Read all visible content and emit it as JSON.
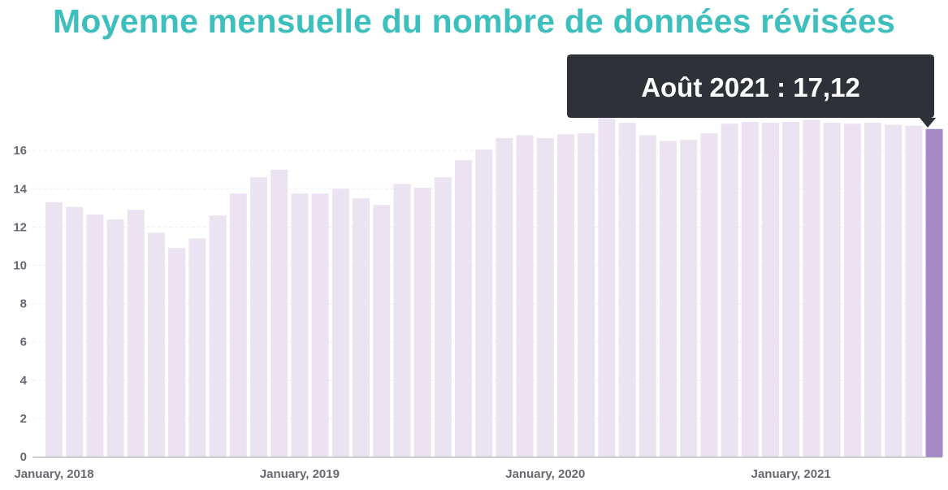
{
  "title": "Moyenne mensuelle du nombre de données révisées",
  "colors": {
    "title": "#3dbfbe",
    "bar": "#ebe2f2",
    "bar_highlight": "#a68ac8",
    "tooltip_bg": "#2e3238",
    "axis": "#9aa0a6",
    "grid": "#eeeeee"
  },
  "tooltip": {
    "label": "Août 2021 : 17,12",
    "bar_index": 43
  },
  "chart_data": {
    "type": "bar",
    "title": "Moyenne mensuelle du nombre de données révisées",
    "xlabel": "",
    "ylabel": "",
    "ylim": [
      0,
      17.8
    ],
    "yticks": [
      0,
      2,
      4,
      6,
      8,
      10,
      12,
      14,
      16
    ],
    "xtick_labels": [
      {
        "index": 0,
        "label": "January, 2018"
      },
      {
        "index": 12,
        "label": "January, 2019"
      },
      {
        "index": 24,
        "label": "January, 2020"
      },
      {
        "index": 36,
        "label": "January, 2021"
      }
    ],
    "categories": [
      "2018-01",
      "2018-02",
      "2018-03",
      "2018-04",
      "2018-05",
      "2018-06",
      "2018-07",
      "2018-08",
      "2018-09",
      "2018-10",
      "2018-11",
      "2018-12",
      "2019-01",
      "2019-02",
      "2019-03",
      "2019-04",
      "2019-05",
      "2019-06",
      "2019-07",
      "2019-08",
      "2019-09",
      "2019-10",
      "2019-11",
      "2019-12",
      "2020-01",
      "2020-02",
      "2020-03",
      "2020-04",
      "2020-05",
      "2020-06",
      "2020-07",
      "2020-08",
      "2020-09",
      "2020-10",
      "2020-11",
      "2020-12",
      "2021-01",
      "2021-02",
      "2021-03",
      "2021-04",
      "2021-05",
      "2021-06",
      "2021-07",
      "2021-08"
    ],
    "values": [
      13.3,
      13.05,
      12.65,
      12.4,
      12.9,
      11.7,
      10.9,
      11.4,
      12.6,
      13.75,
      14.6,
      15.0,
      13.75,
      13.75,
      14.0,
      13.5,
      13.15,
      14.25,
      14.05,
      14.6,
      15.5,
      16.05,
      16.65,
      16.8,
      16.65,
      16.85,
      16.9,
      17.7,
      17.45,
      16.8,
      16.5,
      16.55,
      16.9,
      17.4,
      17.5,
      17.45,
      17.5,
      17.6,
      17.45,
      17.4,
      17.45,
      17.35,
      17.3,
      17.12
    ]
  }
}
